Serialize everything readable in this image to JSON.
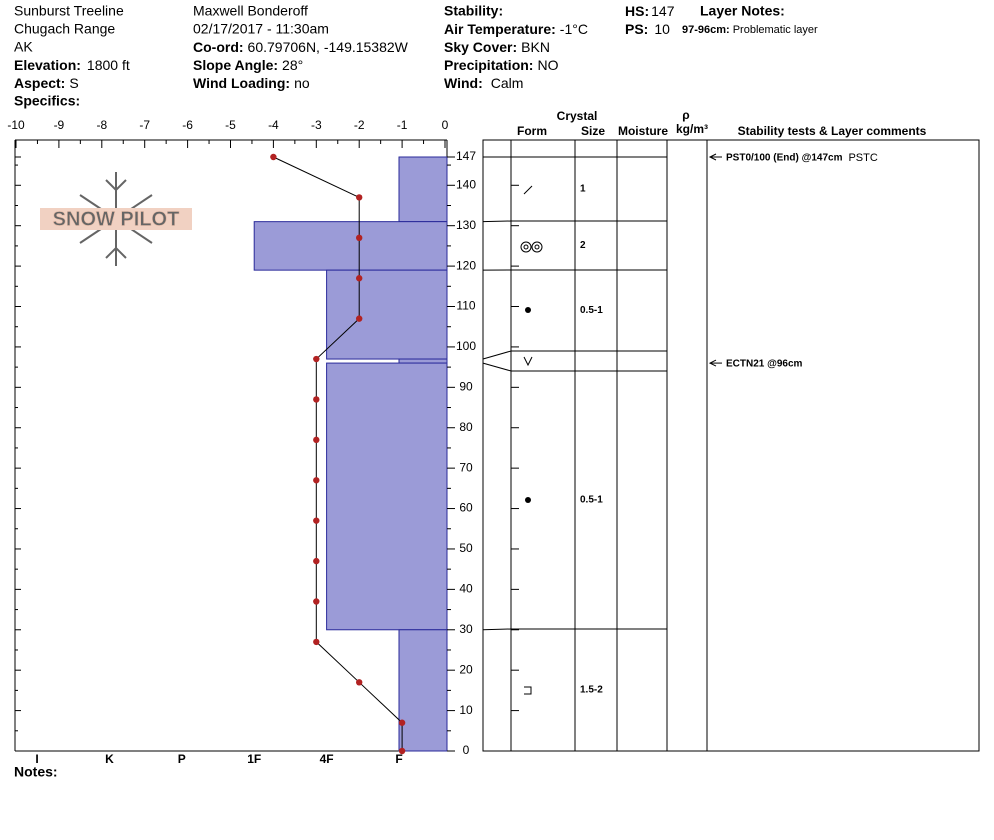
{
  "header": {
    "location": "Sunburst Treeline",
    "range": "Chugach Range",
    "state": "AK",
    "elevation": {
      "label": "Elevation:",
      "value": "1800 ft"
    },
    "aspect": {
      "label": "Aspect:",
      "value": "S"
    },
    "specifics": {
      "label": "Specifics:"
    },
    "observer": "Maxwell Bonderoff",
    "datetime": "02/17/2017 - 11:30am",
    "coord": {
      "label": "Co-ord:",
      "value": "60.79706N, -149.15382W"
    },
    "slope_angle": {
      "label": "Slope Angle:",
      "value": "28°"
    },
    "wind_loading": {
      "label": "Wind Loading:",
      "value": "no"
    },
    "stability": {
      "label": "Stability:"
    },
    "air_temperature": {
      "label": "Air Temperature:",
      "value": "-1°C"
    },
    "sky_cover": {
      "label": "Sky Cover:",
      "value": "BKN"
    },
    "precipitation": {
      "label": "Precipitation:",
      "value": "NO"
    },
    "wind": {
      "label": "Wind:",
      "value": "Calm"
    },
    "hs": {
      "label": "HS:",
      "value": 147
    },
    "ps": {
      "label": "PS:",
      "value": 10
    },
    "layer_notes": {
      "label": "Layer Notes:",
      "notes": [
        {
          "range": "97-96cm:",
          "text": "Problematic layer"
        }
      ]
    }
  },
  "logo": "SNOW PILOT",
  "notes_label": "Notes:",
  "chart_data": {
    "type": "snowpit",
    "xlim": [
      -10,
      0
    ],
    "xticks": [
      -10,
      -9,
      -8,
      -7,
      -6,
      -5,
      -4,
      -3,
      -2,
      -1,
      0
    ],
    "ylim": [
      0,
      147
    ],
    "yticks": [
      0,
      10,
      20,
      30,
      40,
      50,
      60,
      70,
      80,
      90,
      100,
      110,
      120,
      130,
      140,
      147
    ],
    "hardness_ticks": [
      "I",
      "K",
      "P",
      "1F",
      "4F",
      "F"
    ],
    "color": "#9b9bd7",
    "temperature": {
      "color": "#b22222",
      "heights": [
        147,
        137,
        127,
        117,
        107,
        97,
        87,
        77,
        67,
        57,
        47,
        37,
        27,
        17,
        7,
        0
      ],
      "values": [
        -4,
        -2,
        -2,
        -2,
        -2,
        -3,
        -3,
        -3,
        -3,
        -3,
        -3,
        -3,
        -3,
        -2,
        -1,
        -1
      ]
    },
    "layers": [
      {
        "top": 147,
        "bottom": 131,
        "hardness": "F",
        "size": "1"
      },
      {
        "top": 131,
        "bottom": 119,
        "hardness": "1F",
        "size": "2"
      },
      {
        "top": 119,
        "bottom": 97,
        "hardness": "4F",
        "size": "0.5-1"
      },
      {
        "top": 97,
        "bottom": 96,
        "hardness": "F"
      },
      {
        "top": 96,
        "bottom": 30,
        "hardness": "4F",
        "size": "0.5-1"
      },
      {
        "top": 30,
        "bottom": 0,
        "hardness": "F",
        "size": "1.5-2"
      }
    ],
    "table_headers": {
      "crystal": "Crystal",
      "form": "Form",
      "size": "Size",
      "moisture": "Moisture",
      "density": "ρ",
      "density_unit": "kg/m³",
      "comments": "Stability tests & Layer comments"
    },
    "tests": [
      {
        "height": 147,
        "text": "PST0/100 (End) @147cm",
        "code": "PSTC"
      },
      {
        "height": 96,
        "text": "ECTN21 @96cm"
      }
    ]
  }
}
